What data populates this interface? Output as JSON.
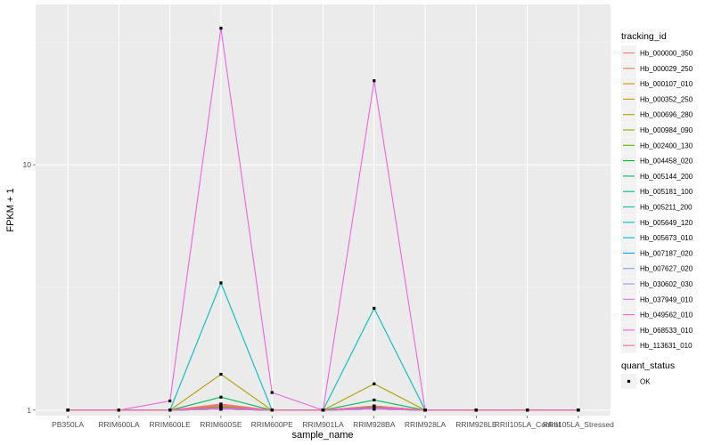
{
  "chart_data": {
    "type": "line",
    "xlabel": "sample_name",
    "ylabel": "FPKM + 1",
    "y_scale": "log10",
    "ylim": [
      0.95,
      45
    ],
    "y_ticks": [
      {
        "value": 1,
        "label": "1"
      },
      {
        "value": 10,
        "label": "10"
      }
    ],
    "categories": [
      "PB350LA",
      "RRIM600LA",
      "RRIM600LE",
      "RRIM600SE",
      "RRIM600PE",
      "RRIM901LA",
      "RRIM928BA",
      "RRIM928LA",
      "RRIM928LE",
      "RRII105LA_Control",
      "RRII105LA_Stressed"
    ],
    "grid": true,
    "legend_position": "right",
    "legend_title": "tracking_id",
    "series": [
      {
        "name": "Hb_000000_350",
        "color": "#F8766D",
        "values": [
          1,
          1,
          1,
          1.06,
          1,
          1,
          1.04,
          1,
          1,
          1,
          1
        ]
      },
      {
        "name": "Hb_000029_250",
        "color": "#EE8045",
        "values": [
          1,
          1,
          1,
          1.04,
          1,
          1,
          1.03,
          1,
          1,
          1,
          1
        ]
      },
      {
        "name": "Hb_000107_010",
        "color": "#DE8C00",
        "values": [
          1,
          1,
          1,
          1.03,
          1,
          1,
          1.02,
          1,
          1,
          1,
          1
        ]
      },
      {
        "name": "Hb_000352_250",
        "color": "#C99800",
        "values": [
          1,
          1,
          1,
          1.05,
          1,
          1,
          1.04,
          1,
          1,
          1,
          1
        ]
      },
      {
        "name": "Hb_000696_280",
        "color": "#B0A100",
        "values": [
          1,
          1,
          1,
          1.4,
          1,
          1,
          1.28,
          1,
          1,
          1,
          1
        ]
      },
      {
        "name": "Hb_000984_090",
        "color": "#8FAA00",
        "values": [
          1,
          1,
          1,
          1.02,
          1,
          1,
          1.02,
          1,
          1,
          1,
          1
        ]
      },
      {
        "name": "Hb_002400_130",
        "color": "#5EB300",
        "values": [
          1,
          1,
          1,
          1.03,
          1,
          1,
          1.03,
          1,
          1,
          1,
          1
        ]
      },
      {
        "name": "Hb_004458_020",
        "color": "#00B81F",
        "values": [
          1,
          1,
          1,
          1.01,
          1,
          1,
          1.01,
          1,
          1,
          1,
          1
        ]
      },
      {
        "name": "Hb_005144_200",
        "color": "#00BC56",
        "values": [
          1,
          1,
          1,
          1.13,
          1,
          1,
          1.1,
          1,
          1,
          1,
          1
        ]
      },
      {
        "name": "Hb_005181_100",
        "color": "#00BF7D",
        "values": [
          1,
          1,
          1,
          1.02,
          1,
          1,
          1.02,
          1,
          1,
          1,
          1
        ]
      },
      {
        "name": "Hb_005211_200",
        "color": "#00C0A0",
        "values": [
          1,
          1,
          1,
          1.01,
          1,
          1,
          1.01,
          1,
          1,
          1,
          1
        ]
      },
      {
        "name": "Hb_005649_120",
        "color": "#00BDC0",
        "values": [
          1,
          1,
          1,
          3.3,
          1,
          1,
          2.6,
          1,
          1,
          1,
          1
        ]
      },
      {
        "name": "Hb_005673_010",
        "color": "#00B6DC",
        "values": [
          1,
          1,
          1,
          1.02,
          1,
          1,
          1.02,
          1,
          1,
          1,
          1
        ]
      },
      {
        "name": "Hb_007187_020",
        "color": "#00A9F4",
        "values": [
          1,
          1,
          1,
          1.01,
          1,
          1,
          1.01,
          1,
          1,
          1,
          1
        ]
      },
      {
        "name": "Hb_007627_020",
        "color": "#7C9EFF",
        "values": [
          1,
          1,
          1,
          1.01,
          1,
          1,
          1.01,
          1,
          1,
          1,
          1
        ]
      },
      {
        "name": "Hb_030602_030",
        "color": "#A58AFF",
        "values": [
          1,
          1,
          1,
          1.02,
          1,
          1,
          1.02,
          1,
          1,
          1,
          1
        ]
      },
      {
        "name": "Hb_037949_010",
        "color": "#D274FC",
        "values": [
          1,
          1,
          1,
          1.01,
          1,
          1,
          1.01,
          1,
          1,
          1,
          1
        ]
      },
      {
        "name": "Hb_049562_010",
        "color": "#F063E1",
        "values": [
          1,
          1,
          1.09,
          36,
          1.18,
          1,
          22,
          1,
          1,
          1,
          1
        ]
      },
      {
        "name": "Hb_068533_010",
        "color": "#FB61C7",
        "values": [
          1,
          1,
          1,
          1.02,
          1,
          1,
          1.02,
          1,
          1,
          1,
          1
        ]
      },
      {
        "name": "Hb_113631_010",
        "color": "#FF6A98",
        "values": [
          1,
          1,
          1,
          1.05,
          1,
          1,
          1.04,
          1,
          1,
          1,
          1
        ]
      }
    ],
    "point_legend": {
      "title": "quant_status",
      "items": [
        {
          "label": "OK",
          "color": "#000000"
        }
      ]
    }
  }
}
